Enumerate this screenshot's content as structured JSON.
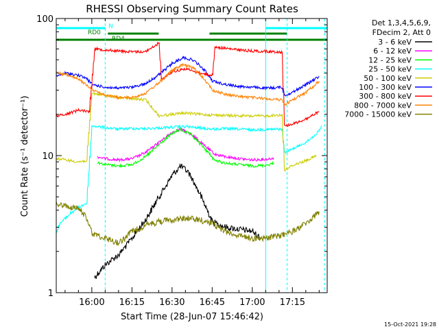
{
  "chart_data": {
    "type": "line",
    "title": "RHESSI Observing Summary Count Rates",
    "xlabel": "Start Time (28-Jun-07 15:46:42)",
    "ylabel": "Count Rate (s⁻¹ detector⁻¹)",
    "y_scale": "log",
    "ylim": [
      1,
      100
    ],
    "xlim": [
      "15:46:42",
      "17:28:00"
    ],
    "x_tick_labels": [
      "16:00",
      "16:15",
      "16:30",
      "16:45",
      "17:00",
      "17:15"
    ],
    "y_tick_labels": [
      "1",
      "10",
      "100"
    ],
    "legend_position": "top-right",
    "legend_header": [
      "Det 1,3,4,5,6,9,",
      "FDecim 2, Att 0"
    ],
    "timestamp": "15-Oct-2021 19:28",
    "flags": [
      {
        "label": "N",
        "color": "#00ffff",
        "intervals": [
          [
            "15:46:42",
            "16:05:00"
          ],
          [
            "17:05:00",
            "17:28:00"
          ]
        ]
      },
      {
        "label": "RD0",
        "color": "#008000",
        "intervals": [
          [
            "16:06:00",
            "16:25:00"
          ],
          [
            "16:44:00",
            "17:13:00"
          ]
        ]
      },
      {
        "label": "RD4",
        "color": "#008000",
        "intervals": [
          [
            "15:46:42",
            "17:28:00"
          ]
        ]
      }
    ],
    "series": [
      {
        "name": "3 - 6 keV",
        "color": "#000000",
        "points": [
          [
            "16:01",
            1.3
          ],
          [
            "16:05",
            1.6
          ],
          [
            "16:10",
            1.9
          ],
          [
            "16:15",
            2.5
          ],
          [
            "16:20",
            3.4
          ],
          [
            "16:25",
            5.0
          ],
          [
            "16:30",
            7.2
          ],
          [
            "16:33",
            8.4
          ],
          [
            "16:36",
            7.6
          ],
          [
            "16:40",
            5.4
          ],
          [
            "16:45",
            3.3
          ],
          [
            "16:50",
            3.0
          ],
          [
            "16:55",
            2.9
          ],
          [
            "17:00",
            2.8
          ],
          [
            "17:03",
            2.5
          ]
        ]
      },
      {
        "name": "6 - 12 keV",
        "color": "#ff00ff",
        "points": [
          [
            "16:02",
            9.8
          ],
          [
            "16:05",
            9.5
          ],
          [
            "16:10",
            9.3
          ],
          [
            "16:15",
            9.5
          ],
          [
            "16:20",
            10.5
          ],
          [
            "16:25",
            12.5
          ],
          [
            "16:30",
            14.8
          ],
          [
            "16:33",
            15.6
          ],
          [
            "16:37",
            14.4
          ],
          [
            "16:42",
            11.8
          ],
          [
            "16:46",
            10.2
          ],
          [
            "16:50",
            9.8
          ],
          [
            "16:55",
            9.5
          ],
          [
            "17:00",
            9.3
          ],
          [
            "17:05",
            9.4
          ],
          [
            "17:08",
            9.6
          ]
        ]
      },
      {
        "name": "12 - 25 keV",
        "color": "#00ff00",
        "points": [
          [
            "16:02",
            8.9
          ],
          [
            "16:05",
            8.6
          ],
          [
            "16:10",
            8.4
          ],
          [
            "16:15",
            8.6
          ],
          [
            "16:20",
            9.8
          ],
          [
            "16:25",
            12.0
          ],
          [
            "16:30",
            14.5
          ],
          [
            "16:33",
            15.5
          ],
          [
            "16:37",
            14.2
          ],
          [
            "16:42",
            11.3
          ],
          [
            "16:46",
            9.2
          ],
          [
            "16:50",
            8.8
          ],
          [
            "16:55",
            8.6
          ],
          [
            "17:00",
            8.4
          ],
          [
            "17:05",
            8.5
          ],
          [
            "17:08",
            8.8
          ]
        ]
      },
      {
        "name": "25 - 50 keV",
        "color": "#00ffff",
        "points": [
          [
            "15:46:42",
            2.8
          ],
          [
            "15:48",
            3.2
          ],
          [
            "15:52",
            3.8
          ],
          [
            "15:56",
            4.3
          ],
          [
            "15:58",
            4.5
          ],
          [
            "16:00",
            16.5
          ],
          [
            "16:05",
            16.0
          ],
          [
            "16:10",
            15.6
          ],
          [
            "16:15",
            15.8
          ],
          [
            "16:20",
            15.7
          ],
          [
            "16:25",
            15.9
          ],
          [
            "16:30",
            16.1
          ],
          [
            "16:35",
            16.3
          ],
          [
            "16:40",
            15.9
          ],
          [
            "16:45",
            15.6
          ],
          [
            "16:50",
            15.7
          ],
          [
            "16:55",
            15.6
          ],
          [
            "17:00",
            15.4
          ],
          [
            "17:05",
            15.5
          ],
          [
            "17:11",
            15.6
          ],
          [
            "17:12",
            10.5
          ],
          [
            "17:15",
            11.2
          ],
          [
            "17:20",
            12.5
          ],
          [
            "17:24",
            14.5
          ],
          [
            "17:26",
            16.5
          ]
        ]
      },
      {
        "name": "50 - 100 keV",
        "color": "#cccc00",
        "points": [
          [
            "15:46:42",
            9.5
          ],
          [
            "15:50",
            9.3
          ],
          [
            "15:55",
            9.0
          ],
          [
            "15:58",
            9.2
          ],
          [
            "16:00",
            28.5
          ],
          [
            "16:05",
            27.5
          ],
          [
            "16:10",
            26.5
          ],
          [
            "16:15",
            26.0
          ],
          [
            "16:20",
            25.5
          ],
          [
            "16:25",
            19.5
          ],
          [
            "16:30",
            20.0
          ],
          [
            "16:35",
            20.5
          ],
          [
            "16:40",
            20.0
          ],
          [
            "16:45",
            19.8
          ],
          [
            "16:50",
            19.6
          ],
          [
            "16:55",
            19.5
          ],
          [
            "17:00",
            19.4
          ],
          [
            "17:05",
            19.5
          ],
          [
            "17:11",
            19.8
          ],
          [
            "17:12",
            7.8
          ],
          [
            "17:15",
            8.5
          ],
          [
            "17:20",
            9.2
          ],
          [
            "17:24",
            10.0
          ]
        ]
      },
      {
        "name": "100 - 300 keV",
        "color": "#0000ff",
        "points": [
          [
            "15:46:42",
            38.0
          ],
          [
            "15:50",
            40.0
          ],
          [
            "15:55",
            38.5
          ],
          [
            "15:58",
            36.5
          ],
          [
            "16:00",
            33.0
          ],
          [
            "16:05",
            31.5
          ],
          [
            "16:10",
            31.0
          ],
          [
            "16:15",
            31.5
          ],
          [
            "16:20",
            33.5
          ],
          [
            "16:25",
            39.0
          ],
          [
            "16:30",
            47.0
          ],
          [
            "16:34",
            52.0
          ],
          [
            "16:38",
            49.5
          ],
          [
            "16:42",
            42.0
          ],
          [
            "16:45",
            35.0
          ],
          [
            "16:50",
            33.0
          ],
          [
            "16:55",
            32.0
          ],
          [
            "17:00",
            31.5
          ],
          [
            "17:05",
            31.0
          ],
          [
            "17:11",
            31.5
          ],
          [
            "17:12",
            27.5
          ],
          [
            "17:15",
            29.0
          ],
          [
            "17:20",
            33.0
          ],
          [
            "17:25",
            38.0
          ]
        ]
      },
      {
        "name": "300 - 800 keV",
        "color": "#ff0000",
        "points": [
          [
            "15:46:42",
            19.5
          ],
          [
            "15:50",
            20.0
          ],
          [
            "15:55",
            21.5
          ],
          [
            "15:59",
            21.0
          ],
          [
            "16:01",
            60.0
          ],
          [
            "16:05",
            59.0
          ],
          [
            "16:10",
            58.0
          ],
          [
            "16:15",
            57.0
          ],
          [
            "16:20",
            57.5
          ],
          [
            "16:25",
            66.0
          ],
          [
            "16:26",
            36.0
          ],
          [
            "16:30",
            41.0
          ],
          [
            "16:35",
            43.0
          ],
          [
            "16:40",
            40.0
          ],
          [
            "16:45",
            38.5
          ],
          [
            "16:46",
            62.0
          ],
          [
            "16:50",
            60.5
          ],
          [
            "16:55",
            59.0
          ],
          [
            "17:00",
            58.0
          ],
          [
            "17:05",
            57.5
          ],
          [
            "17:11",
            57.0
          ],
          [
            "17:12",
            16.5
          ],
          [
            "17:15",
            17.0
          ],
          [
            "17:20",
            18.5
          ],
          [
            "17:25",
            21.0
          ]
        ]
      },
      {
        "name": "800 - 7000 keV",
        "color": "#ff8000",
        "points": [
          [
            "15:46:42",
            40.0
          ],
          [
            "15:50",
            39.0
          ],
          [
            "15:55",
            36.0
          ],
          [
            "16:00",
            30.5
          ],
          [
            "16:05",
            27.5
          ],
          [
            "16:10",
            26.5
          ],
          [
            "16:15",
            26.5
          ],
          [
            "16:20",
            28.5
          ],
          [
            "16:25",
            34.0
          ],
          [
            "16:30",
            42.0
          ],
          [
            "16:34",
            46.0
          ],
          [
            "16:38",
            43.5
          ],
          [
            "16:42",
            36.0
          ],
          [
            "16:45",
            30.0
          ],
          [
            "16:50",
            28.0
          ],
          [
            "16:55",
            27.0
          ],
          [
            "17:00",
            26.5
          ],
          [
            "17:05",
            26.0
          ],
          [
            "17:11",
            25.5
          ],
          [
            "17:12",
            23.5
          ],
          [
            "17:15",
            25.5
          ],
          [
            "17:20",
            29.0
          ],
          [
            "17:25",
            35.0
          ]
        ]
      },
      {
        "name": "7000 - 15000 keV",
        "color": "#808000",
        "points": [
          [
            "15:46:42",
            4.4
          ],
          [
            "15:50",
            4.3
          ],
          [
            "15:55",
            4.1
          ],
          [
            "15:58",
            3.5
          ],
          [
            "16:00",
            2.7
          ],
          [
            "16:05",
            2.5
          ],
          [
            "16:10",
            2.3
          ],
          [
            "16:15",
            2.8
          ],
          [
            "16:20",
            3.1
          ],
          [
            "16:25",
            3.3
          ],
          [
            "16:30",
            3.4
          ],
          [
            "16:35",
            3.5
          ],
          [
            "16:40",
            3.4
          ],
          [
            "16:45",
            3.2
          ],
          [
            "16:50",
            2.8
          ],
          [
            "16:55",
            2.6
          ],
          [
            "17:00",
            2.5
          ],
          [
            "17:05",
            2.5
          ],
          [
            "17:10",
            2.6
          ],
          [
            "17:15",
            2.8
          ],
          [
            "17:20",
            3.2
          ],
          [
            "17:25",
            3.9
          ]
        ]
      }
    ]
  }
}
